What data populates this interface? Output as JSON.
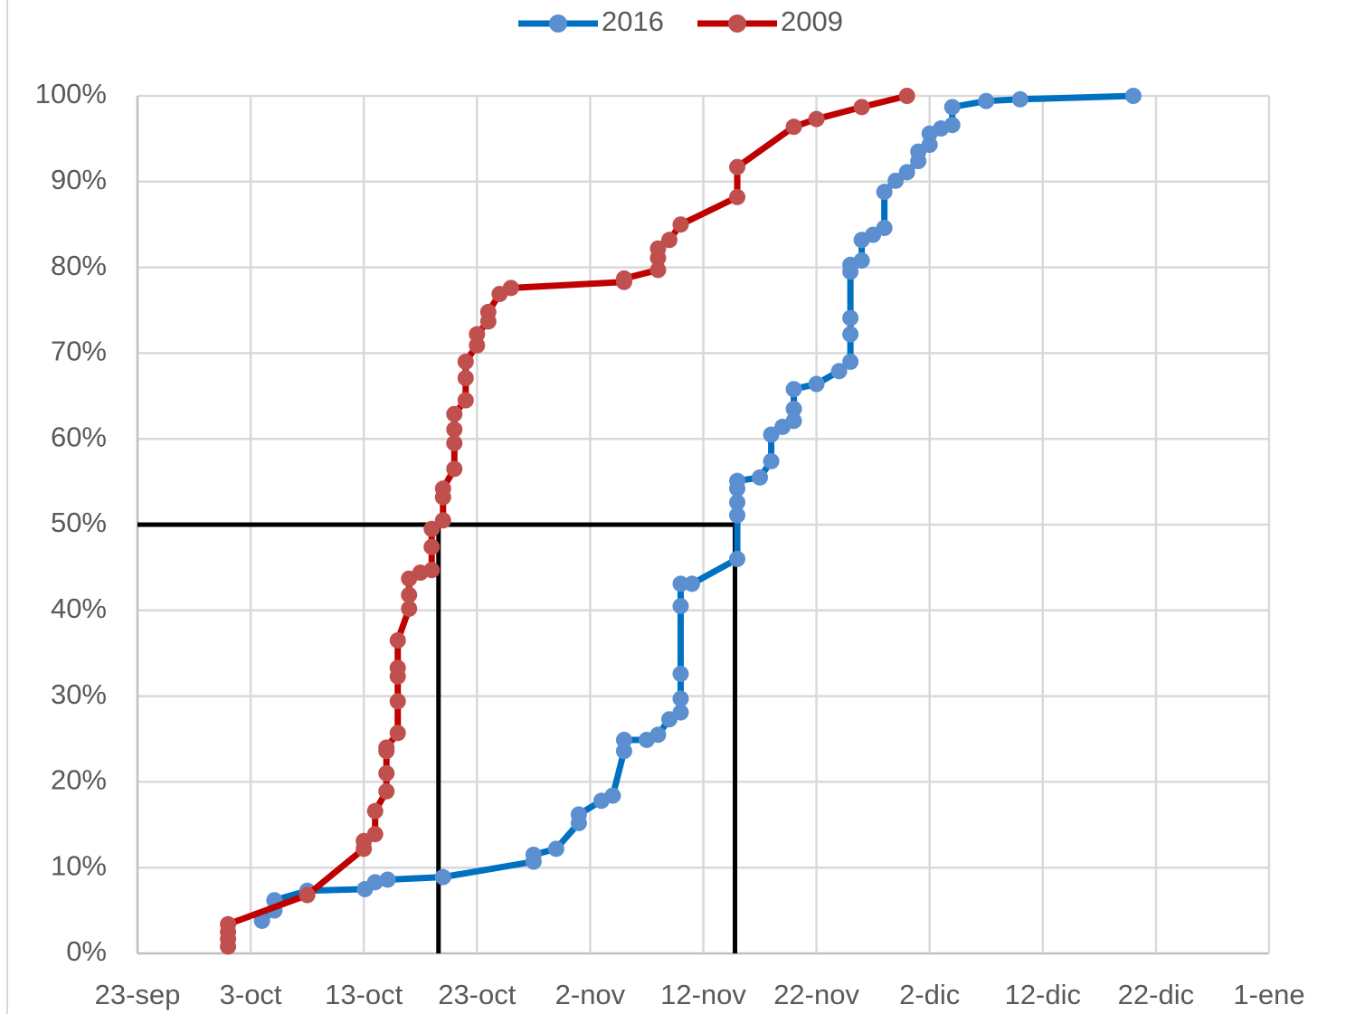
{
  "chart_data": {
    "type": "line",
    "legend": "top",
    "grid": true,
    "xlim": [
      266,
      366
    ],
    "xticks": [
      {
        "value": 266,
        "label": "23-sep"
      },
      {
        "value": 276,
        "label": "3-oct"
      },
      {
        "value": 286,
        "label": "13-oct"
      },
      {
        "value": 296,
        "label": "23-oct"
      },
      {
        "value": 306,
        "label": "2-nov"
      },
      {
        "value": 316,
        "label": "12-nov"
      },
      {
        "value": 326,
        "label": "22-nov"
      },
      {
        "value": 336,
        "label": "2-dic"
      },
      {
        "value": 346,
        "label": "12-dic"
      },
      {
        "value": 356,
        "label": "22-dic"
      },
      {
        "value": 366,
        "label": "1-ene"
      }
    ],
    "ylim": [
      0,
      100
    ],
    "yticks": [
      {
        "value": 0,
        "label": "0%"
      },
      {
        "value": 10,
        "label": "10%"
      },
      {
        "value": 20,
        "label": "20%"
      },
      {
        "value": 30,
        "label": "30%"
      },
      {
        "value": 40,
        "label": "40%"
      },
      {
        "value": 50,
        "label": "50%"
      },
      {
        "value": 60,
        "label": "60%"
      },
      {
        "value": 70,
        "label": "70%"
      },
      {
        "value": 80,
        "label": "80%"
      },
      {
        "value": 90,
        "label": "90%"
      },
      {
        "value": 100,
        "label": "100%"
      }
    ],
    "guides": {
      "y": 50,
      "x": [
        292.6,
        318.8
      ],
      "color": "#000000"
    },
    "series": [
      {
        "name": "2016",
        "color": "#0070c0",
        "marker_color": "#5b8fd0",
        "x": [
          277,
          278.1,
          278.1,
          281,
          286.1,
          287,
          288.1,
          293,
          301,
          301,
          303,
          305,
          305,
          307,
          308,
          309,
          309,
          311,
          312,
          313,
          314,
          314,
          314,
          314,
          314,
          315,
          319,
          319,
          319,
          319,
          319,
          321,
          322,
          322,
          323,
          324,
          324,
          324,
          326,
          328,
          329,
          329,
          329,
          329,
          329,
          330,
          330,
          331,
          332,
          332,
          333,
          334,
          335,
          335,
          336,
          336,
          337,
          338,
          338,
          341,
          344,
          354
        ],
        "values": [
          3.8,
          5.0,
          6.2,
          7.3,
          7.5,
          8.3,
          8.6,
          8.9,
          10.7,
          11.5,
          12.2,
          15.2,
          16.2,
          17.8,
          18.4,
          23.6,
          24.9,
          24.9,
          25.5,
          27.3,
          28.1,
          29.7,
          32.6,
          40.5,
          43.1,
          43.1,
          46.0,
          51.1,
          52.6,
          54.2,
          55.1,
          55.5,
          57.4,
          60.5,
          61.4,
          62.1,
          63.5,
          65.8,
          66.4,
          67.9,
          69.0,
          72.2,
          74.1,
          79.5,
          80.3,
          80.8,
          83.2,
          83.8,
          84.6,
          88.8,
          90.1,
          91.1,
          92.4,
          93.5,
          94.3,
          95.6,
          96.2,
          96.6,
          98.7,
          99.4,
          99.6,
          100
        ]
      },
      {
        "name": "2009",
        "color": "#c00000",
        "marker_color": "#c0504d",
        "x": [
          274,
          274,
          274,
          274,
          281,
          286,
          286,
          287,
          287,
          288,
          288,
          288,
          288,
          289,
          289,
          289,
          289,
          289,
          290,
          290,
          290,
          291,
          292,
          292,
          292,
          293,
          293,
          293,
          294,
          294,
          294,
          294,
          295,
          295,
          295,
          296,
          296,
          297,
          297,
          298,
          299,
          309,
          309,
          312,
          312,
          312,
          313,
          314,
          319,
          319,
          324,
          326,
          330,
          334
        ],
        "values": [
          0.8,
          1.7,
          2.5,
          3.4,
          6.8,
          12.2,
          13.1,
          13.9,
          16.6,
          18.9,
          21.0,
          23.6,
          24.0,
          25.7,
          29.4,
          32.3,
          33.3,
          36.5,
          40.2,
          41.8,
          43.7,
          44.4,
          44.7,
          47.4,
          49.5,
          50.5,
          53.2,
          54.2,
          56.5,
          59.5,
          61.1,
          62.9,
          64.5,
          67.1,
          69.0,
          70.9,
          72.2,
          73.7,
          74.8,
          76.9,
          77.6,
          78.3,
          78.7,
          79.7,
          81.1,
          82.2,
          83.2,
          85.0,
          88.2,
          91.7,
          96.4,
          97.3,
          98.7,
          100
        ]
      }
    ]
  }
}
